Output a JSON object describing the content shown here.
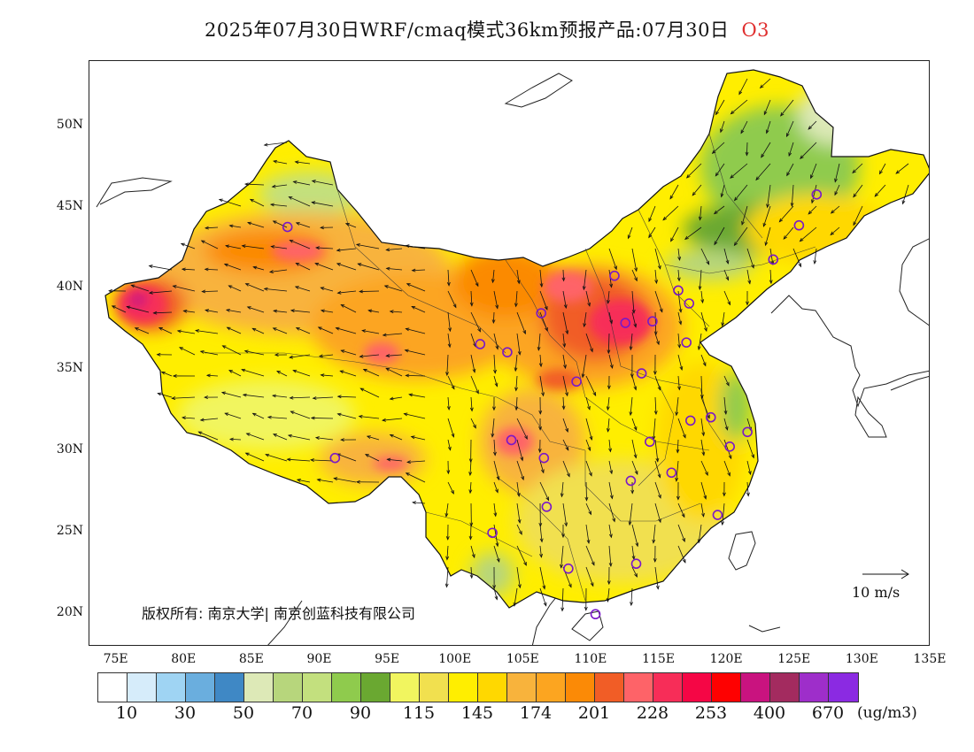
{
  "title": {
    "text": "2025年07月30日WRF/cmaq模式36km预报产品:07月30日",
    "species": "O3"
  },
  "map": {
    "lat_labels": [
      "50N",
      "45N",
      "40N",
      "35N",
      "30N",
      "25N",
      "20N"
    ],
    "lon_labels": [
      "75E",
      "80E",
      "85E",
      "90E",
      "95E",
      "100E",
      "105E",
      "110E",
      "115E",
      "120E",
      "125E",
      "130E",
      "135E"
    ],
    "lat_range": [
      18,
      54
    ],
    "lon_range": [
      73,
      135
    ],
    "copyright": "版权所有: 南京大学| 南京创蓝科技有限公司",
    "wind_reference": "10 m/s"
  },
  "colorbar": {
    "colors": [
      "#ffffff",
      "#d6ecfa",
      "#9fd4f3",
      "#6aaede",
      "#3f88c5",
      "#dde9b7",
      "#b7d67c",
      "#c3e07e",
      "#8fcb4d",
      "#6aa831",
      "#f1f55f",
      "#f1e04f",
      "#ffee00",
      "#ffd800",
      "#f8b33c",
      "#fca520",
      "#fb8a06",
      "#f15d26",
      "#fe6368",
      "#f72d58",
      "#f50645",
      "#fe0101",
      "#c9137f",
      "#a32b5f",
      "#9e2eca",
      "#8b2ae2"
    ],
    "tick_labels": [
      "10",
      "30",
      "50",
      "70",
      "90",
      "115",
      "145",
      "174",
      "201",
      "228",
      "253",
      "400",
      "670"
    ],
    "unit": "(ug/m3)"
  },
  "stations": [
    [
      87.6,
      43.8
    ],
    [
      101.8,
      36.6
    ],
    [
      103.8,
      36.1
    ],
    [
      106.3,
      38.5
    ],
    [
      111.7,
      40.8
    ],
    [
      112.5,
      37.9
    ],
    [
      114.5,
      38.0
    ],
    [
      116.4,
      39.9
    ],
    [
      117.2,
      39.1
    ],
    [
      117.0,
      36.7
    ],
    [
      113.7,
      34.8
    ],
    [
      108.9,
      34.3
    ],
    [
      104.1,
      30.7
    ],
    [
      106.5,
      29.6
    ],
    [
      106.7,
      26.6
    ],
    [
      102.7,
      25.0
    ],
    [
      108.3,
      22.8
    ],
    [
      113.3,
      23.1
    ],
    [
      110.3,
      20.0
    ],
    [
      112.9,
      28.2
    ],
    [
      114.3,
      30.6
    ],
    [
      115.9,
      28.7
    ],
    [
      117.3,
      31.9
    ],
    [
      118.8,
      32.1
    ],
    [
      120.2,
      30.3
    ],
    [
      121.5,
      31.2
    ],
    [
      119.3,
      26.1
    ],
    [
      91.1,
      29.6
    ],
    [
      123.4,
      41.8
    ],
    [
      125.3,
      43.9
    ],
    [
      126.6,
      45.8
    ]
  ]
}
